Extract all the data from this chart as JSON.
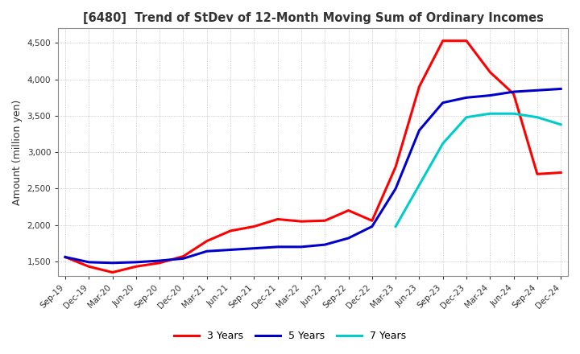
{
  "title": "[6480]  Trend of StDev of 12-Month Moving Sum of Ordinary Incomes",
  "ylabel": "Amount (million yen)",
  "ylim": [
    1300,
    4700
  ],
  "yticks": [
    1500,
    2000,
    2500,
    3000,
    3500,
    4000,
    4500
  ],
  "line_colors": {
    "3 Years": "#ff0000",
    "5 Years": "#0000cd",
    "7 Years": "#00cccc",
    "10 Years": "#008000"
  },
  "line_widths": {
    "3 Years": 2.2,
    "5 Years": 2.2,
    "7 Years": 2.2,
    "10 Years": 2.2
  },
  "x_labels": [
    "Sep-19",
    "Dec-19",
    "Mar-20",
    "Jun-20",
    "Sep-20",
    "Dec-20",
    "Mar-21",
    "Jun-21",
    "Sep-21",
    "Dec-21",
    "Mar-22",
    "Jun-22",
    "Sep-22",
    "Dec-22",
    "Mar-23",
    "Jun-23",
    "Sep-23",
    "Dec-23",
    "Mar-24",
    "Jun-24",
    "Sep-24",
    "Dec-24"
  ],
  "series": {
    "3 Years": [
      1560,
      1430,
      1350,
      1430,
      1480,
      1570,
      1780,
      1920,
      1980,
      2080,
      2050,
      2060,
      2200,
      2060,
      2800,
      3900,
      4530,
      4530,
      4100,
      3800,
      2700,
      2720
    ],
    "5 Years": [
      1560,
      1490,
      1480,
      1490,
      1510,
      1540,
      1640,
      1660,
      1680,
      1700,
      1700,
      1730,
      1820,
      1980,
      2500,
      3300,
      3680,
      3750,
      3780,
      3830,
      3850,
      3870
    ],
    "7 Years": [
      null,
      null,
      null,
      null,
      null,
      null,
      null,
      null,
      null,
      null,
      null,
      null,
      null,
      null,
      1980,
      2550,
      3120,
      3480,
      3530,
      3530,
      3480,
      3380
    ],
    "10 Years": [
      null,
      null,
      null,
      null,
      null,
      null,
      null,
      null,
      null,
      null,
      null,
      null,
      null,
      null,
      null,
      null,
      null,
      null,
      null,
      null,
      null,
      null
    ]
  },
  "background_color": "#ffffff",
  "grid_color": "#aaaaaa"
}
